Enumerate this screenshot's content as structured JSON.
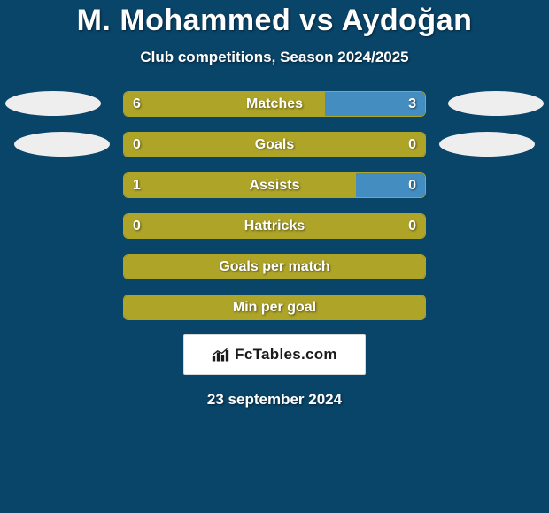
{
  "page": {
    "background_color": "#094469",
    "text_color": "#ffffff",
    "title": "M. Mohammed vs Aydoğan",
    "subtitle": "Club competitions, Season 2024/2025",
    "date": "23 september 2024"
  },
  "colors": {
    "left": "#aea428",
    "right": "#448dc1",
    "bar_border": "#aea428",
    "ellipse": "#eeeeee"
  },
  "stats": [
    {
      "label": "Matches",
      "left_val": "6",
      "right_val": "3",
      "left_pct": 66.7,
      "right_pct": 33.3,
      "show_vals": true
    },
    {
      "label": "Goals",
      "left_val": "0",
      "right_val": "0",
      "left_pct": 100,
      "right_pct": 0,
      "show_vals": true
    },
    {
      "label": "Assists",
      "left_val": "1",
      "right_val": "0",
      "left_pct": 77,
      "right_pct": 23,
      "show_vals": true
    },
    {
      "label": "Hattricks",
      "left_val": "0",
      "right_val": "0",
      "left_pct": 100,
      "right_pct": 0,
      "show_vals": true
    },
    {
      "label": "Goals per match",
      "left_val": "",
      "right_val": "",
      "left_pct": 100,
      "right_pct": 0,
      "show_vals": false
    },
    {
      "label": "Min per goal",
      "left_val": "",
      "right_val": "",
      "left_pct": 100,
      "right_pct": 0,
      "show_vals": false
    }
  ],
  "logo": {
    "text": "FcTables.com"
  }
}
